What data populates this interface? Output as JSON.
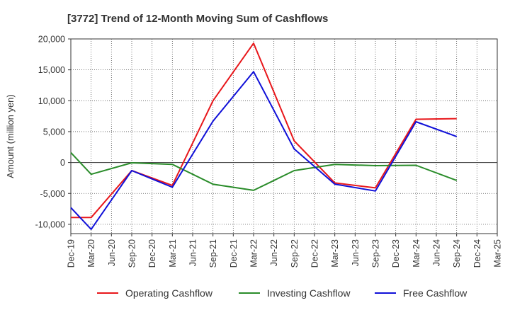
{
  "chart_data": {
    "type": "line",
    "title": "[3772]  Trend of 12-Month Moving Sum of Cashflows",
    "ylabel": "Amount (million yen)",
    "xlabel": "",
    "ylim": [
      -11500,
      20000
    ],
    "y_ticks": [
      20000,
      15000,
      10000,
      5000,
      0,
      -5000,
      -10000
    ],
    "y_tick_labels": [
      "20,000",
      "15,000",
      "10,000",
      "5,000",
      "0",
      "-5,000",
      "-10,000"
    ],
    "categories": [
      "Dec-19",
      "Mar-20",
      "Jun-20",
      "Sep-20",
      "Dec-20",
      "Mar-21",
      "Jun-21",
      "Sep-21",
      "Dec-21",
      "Mar-22",
      "Jun-22",
      "Sep-22",
      "Dec-22",
      "Mar-23",
      "Jun-23",
      "Sep-23",
      "Dec-23",
      "Mar-24",
      "Jun-24",
      "Sep-24",
      "Dec-24",
      "Mar-25"
    ],
    "grid": true,
    "legend_position": "bottom",
    "series": [
      {
        "name": "Operating Cashflow",
        "color": "#e8171b",
        "values": [
          -8900,
          -8900,
          null,
          -1300,
          null,
          -3700,
          null,
          10000,
          null,
          19300,
          null,
          3500,
          null,
          -3300,
          null,
          -4100,
          null,
          7000,
          null,
          7100,
          null,
          null
        ]
      },
      {
        "name": "Investing Cashflow",
        "color": "#2a8c2a",
        "values": [
          1600,
          -1900,
          null,
          -50,
          null,
          -300,
          null,
          -3500,
          null,
          -4500,
          null,
          -1300,
          null,
          -300,
          null,
          -500,
          null,
          -450,
          null,
          -2900,
          null,
          null
        ]
      },
      {
        "name": "Free Cashflow",
        "color": "#1010d8",
        "values": [
          -7300,
          -10800,
          null,
          -1300,
          null,
          -4000,
          null,
          6700,
          null,
          14700,
          null,
          2200,
          null,
          -3500,
          null,
          -4600,
          null,
          6600,
          null,
          4200,
          null,
          null
        ]
      }
    ]
  }
}
